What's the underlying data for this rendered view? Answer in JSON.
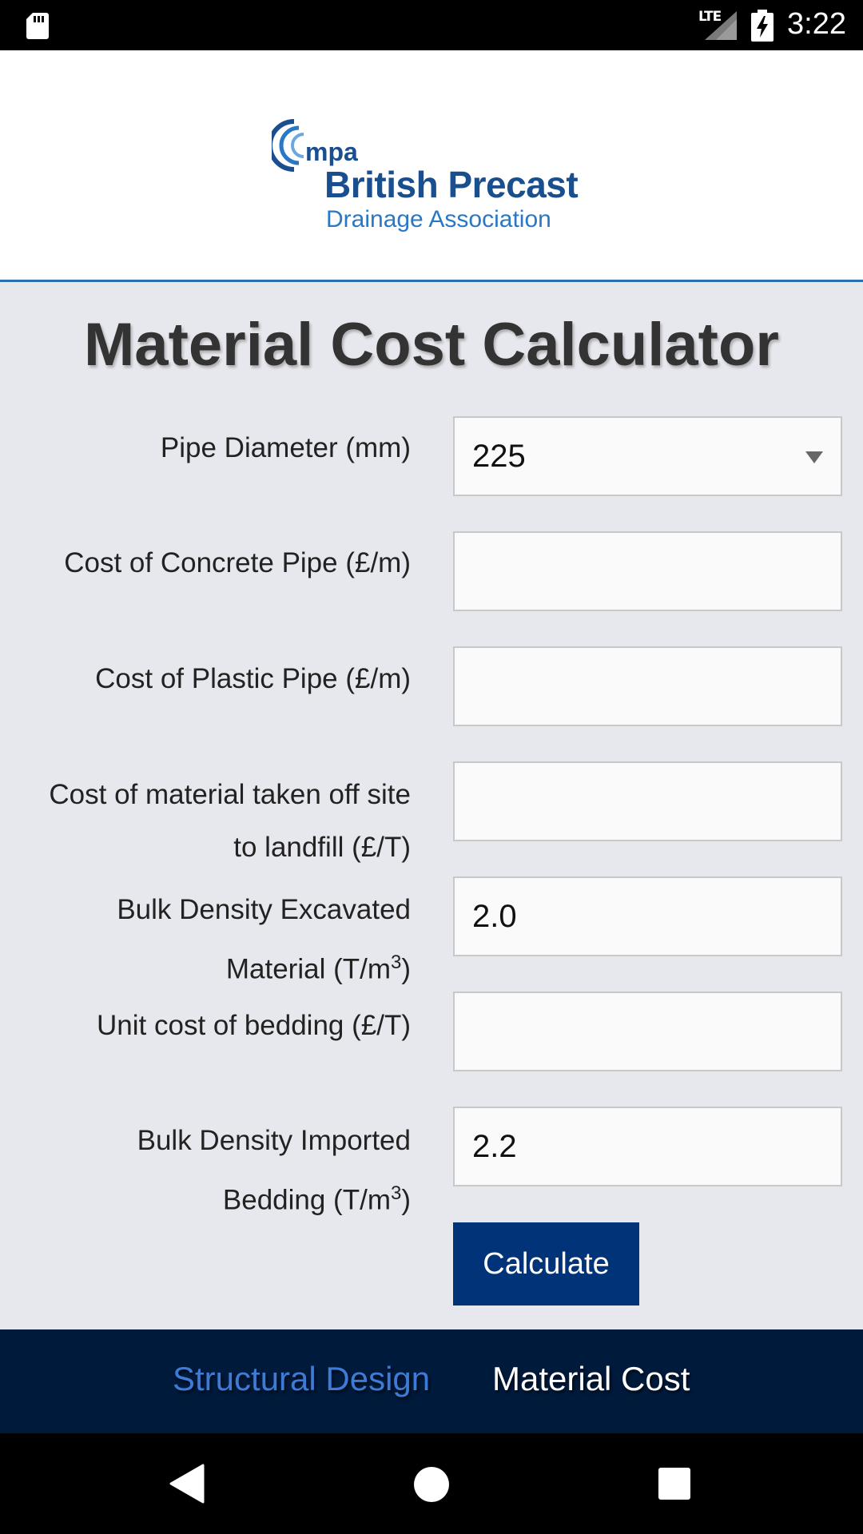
{
  "status_bar": {
    "network_label": "LTE",
    "time": "3:22"
  },
  "header": {
    "logo": {
      "mark": "mpa",
      "line1": "British Precast",
      "line2": "Drainage Association"
    }
  },
  "main": {
    "title": "Material Cost Calculator",
    "fields": [
      {
        "label": "Pipe Diameter (mm)",
        "value": "225",
        "type": "select"
      },
      {
        "label": "Cost of Concrete Pipe (£/m)",
        "value": "",
        "type": "input"
      },
      {
        "label": "Cost of Plastic Pipe (£/m)",
        "value": "",
        "type": "input"
      },
      {
        "label_line1": "Cost of material taken off site",
        "label_line2": "to landfill (£/T)",
        "value": "",
        "type": "input"
      },
      {
        "label_line1": "Bulk Density Excavated",
        "label_line2_prefix": "Material (T/m",
        "label_sup": "3",
        "label_line2_suffix": ")",
        "value": "2.0",
        "type": "input"
      },
      {
        "label": "Unit cost of bedding (£/T)",
        "value": "",
        "type": "input"
      },
      {
        "label_line1": "Bulk Density Imported",
        "label_line2_prefix": "Bedding (T/m",
        "label_sup": "3",
        "label_line2_suffix": ")",
        "value": "2.2",
        "type": "input"
      }
    ],
    "calculate_label": "Calculate"
  },
  "tabs": [
    {
      "label": "Structural Design",
      "active": false
    },
    {
      "label": "Material Cost",
      "active": true
    }
  ],
  "colors": {
    "accent": "#003377",
    "tabbar_bg": "#001a3c",
    "inactive_tab": "#3d7bd6",
    "page_bg": "#e7e8ed"
  },
  "icons": [
    "sd-card-icon",
    "signal-icon",
    "battery-charging-icon",
    "back-icon",
    "home-icon",
    "recents-icon",
    "dropdown-arrow-icon"
  ]
}
